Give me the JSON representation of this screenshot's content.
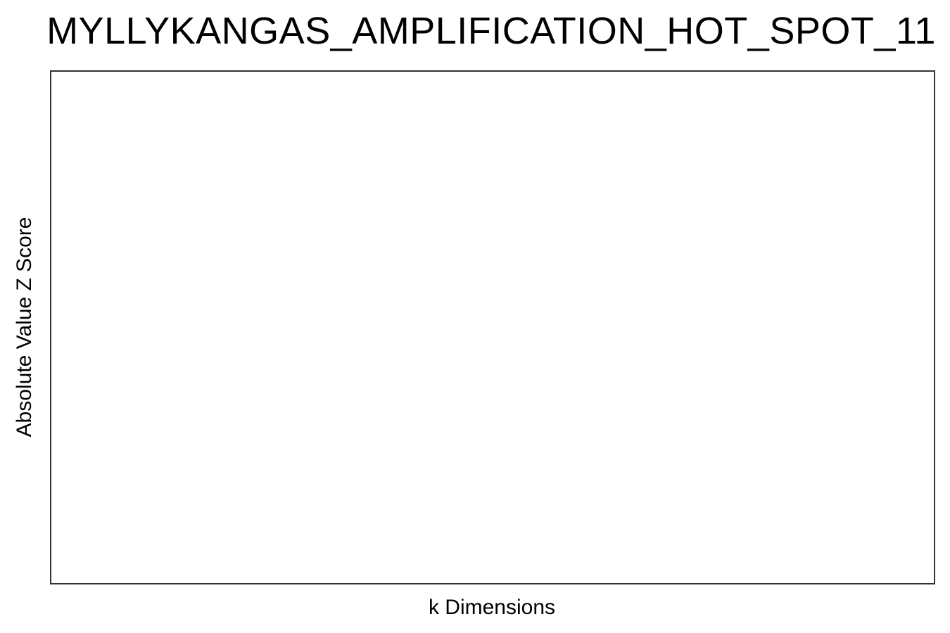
{
  "chart_data": {
    "type": "line",
    "title": "MYLLYKANGAS_AMPLIFICATION_HOT_SPOT_11",
    "xlabel": "k Dimensions",
    "ylabel": "Absolute Value Z Score",
    "series": [],
    "grid": false,
    "legend": "none"
  }
}
